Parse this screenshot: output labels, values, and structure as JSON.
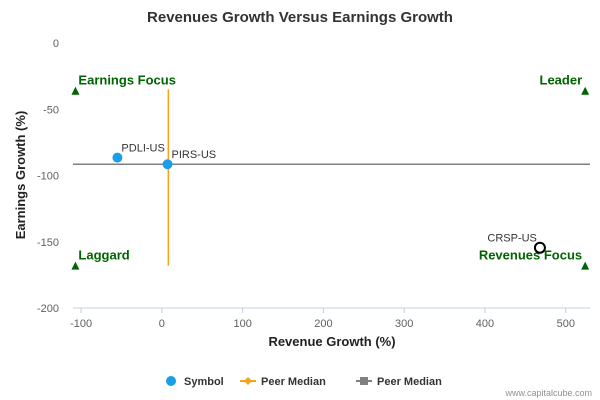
{
  "chart_data": {
    "type": "scatter",
    "title": "Revenues Growth Versus Earnings Growth",
    "xlabel": "Revenue Growth (%)",
    "ylabel": "Earnings Growth (%)",
    "xlim": [
      -110,
      530
    ],
    "ylim": [
      -200,
      0
    ],
    "xticks": [
      -100,
      0,
      100,
      200,
      300,
      400,
      500
    ],
    "yticks": [
      0,
      -50,
      -100,
      -150,
      -200
    ],
    "grid": false,
    "legend_position": "bottom",
    "points": [
      {
        "label": "PDLI-US",
        "x": -55,
        "y": -86.5,
        "style": "filled",
        "color": "#1a9ee8"
      },
      {
        "label": "PIRS-US",
        "x": 7,
        "y": -91.5,
        "style": "filled",
        "color": "#1a9ee8"
      },
      {
        "label": "CRSP-US",
        "x": 468,
        "y": -154.5,
        "style": "hollow",
        "color": "#000000"
      }
    ],
    "peer_median_revenue": {
      "x": 8,
      "y_range": [
        -168,
        -35
      ],
      "color": "#f7a21b"
    },
    "peer_median_earnings": {
      "y": -91.5,
      "x_range": [
        -110,
        530
      ],
      "color": "#808080"
    },
    "quadrant_labels": [
      {
        "text": "Earnings Focus",
        "x": -107,
        "y": -36,
        "side": "left"
      },
      {
        "text": "Leader",
        "x": 524,
        "y": -36,
        "side": "right"
      },
      {
        "text": "Laggard",
        "x": -107,
        "y": -168,
        "side": "left"
      },
      {
        "text": "Revenues Focus",
        "x": 524,
        "y": -168,
        "side": "right"
      }
    ],
    "marker_color": "#006400",
    "legend": [
      {
        "text": "Symbol",
        "kind": "dot",
        "color": "#1a9ee8"
      },
      {
        "text": "Peer Median",
        "kind": "line-diamond",
        "color": "#f7a21b"
      },
      {
        "text": "Peer Median",
        "kind": "line-square",
        "color": "#808080"
      }
    ]
  },
  "credit": "www.capitalcube.com"
}
